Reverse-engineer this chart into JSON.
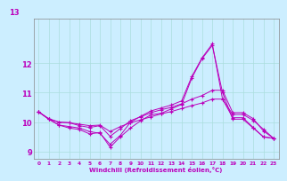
{
  "bg_color": "#cceeff",
  "grid_color": "#aadddd",
  "line_color": "#bb00bb",
  "x": [
    0,
    1,
    2,
    3,
    4,
    5,
    6,
    7,
    8,
    9,
    10,
    11,
    12,
    13,
    14,
    15,
    16,
    17,
    18,
    19,
    20,
    21,
    22,
    23
  ],
  "line1": [
    10.35,
    10.1,
    9.9,
    9.8,
    9.75,
    9.6,
    9.65,
    9.15,
    9.5,
    9.8,
    10.05,
    10.25,
    10.3,
    10.45,
    10.6,
    11.5,
    12.15,
    12.6,
    11.0,
    10.1,
    10.1,
    9.8,
    9.5,
    9.45
  ],
  "line2": [
    10.35,
    10.1,
    9.9,
    9.85,
    9.8,
    9.68,
    9.62,
    9.25,
    9.55,
    10.0,
    10.2,
    10.38,
    10.48,
    10.58,
    10.72,
    11.55,
    12.18,
    12.65,
    10.78,
    10.15,
    10.15,
    9.82,
    9.5,
    9.45
  ],
  "line3": [
    10.35,
    10.12,
    10.0,
    9.98,
    9.88,
    9.82,
    9.88,
    9.52,
    9.78,
    10.05,
    10.18,
    10.32,
    10.42,
    10.5,
    10.62,
    10.78,
    10.9,
    11.08,
    11.08,
    10.32,
    10.32,
    10.12,
    9.7,
    9.45
  ],
  "line4": [
    10.35,
    10.1,
    10.0,
    9.98,
    9.93,
    9.88,
    9.9,
    9.68,
    9.85,
    9.98,
    10.08,
    10.18,
    10.28,
    10.36,
    10.46,
    10.56,
    10.65,
    10.78,
    10.78,
    10.26,
    10.26,
    10.06,
    9.76,
    9.45
  ],
  "ylim": [
    8.75,
    13.5
  ],
  "yticks": [
    9,
    10,
    11,
    12
  ],
  "xlim": [
    -0.5,
    23.5
  ],
  "xticks": [
    0,
    1,
    2,
    3,
    4,
    5,
    6,
    7,
    8,
    9,
    10,
    11,
    12,
    13,
    14,
    15,
    16,
    17,
    18,
    19,
    20,
    21,
    22,
    23
  ],
  "xlabel": "Windchill (Refroidissement éolien,°C)",
  "top_label": "13",
  "ylabel_partial": "13"
}
